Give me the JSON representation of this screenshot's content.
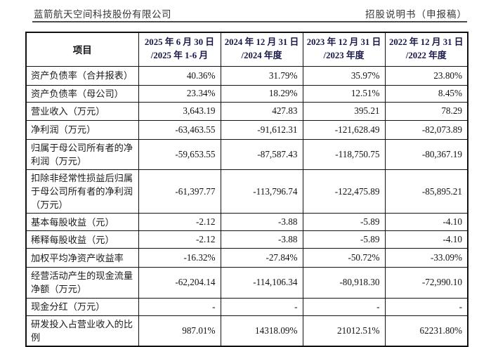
{
  "page_header": {
    "company": "蓝箭航天空间科技股份有限公司",
    "doc_title": "招股说明书（申报稿）"
  },
  "table": {
    "item_header": "项目",
    "columns": [
      {
        "line1": "2025 年 6 月 30 日",
        "line2": "/2025 年 1-6 月"
      },
      {
        "line1": "2024 年 12 月 31 日",
        "line2": "/2024 年度"
      },
      {
        "line1": "2023 年 12 月 31 日",
        "line2": "/2023 年度"
      },
      {
        "line1": "2022 年 12 月 31 日",
        "line2": "/2022 年度"
      }
    ],
    "rows": [
      {
        "label": "资产负债率（合并报表）",
        "values": [
          "40.36%",
          "31.79%",
          "35.97%",
          "23.80%"
        ]
      },
      {
        "label": "资产负债率（母公司）",
        "values": [
          "23.34%",
          "18.29%",
          "12.51%",
          "8.45%"
        ]
      },
      {
        "label": "营业收入（万元）",
        "values": [
          "3,643.19",
          "427.83",
          "395.21",
          "78.29"
        ]
      },
      {
        "label": "净利润（万元）",
        "values": [
          "-63,463.55",
          "-91,612.31",
          "-121,628.49",
          "-82,073.89"
        ]
      },
      {
        "label": "归属于母公司所有者的净利润（万元）",
        "values": [
          "-59,653.55",
          "-87,587.43",
          "-118,750.75",
          "-80,367.19"
        ]
      },
      {
        "label": "扣除非经常性损益后归属于母公司所有者的净利润（万元）",
        "values": [
          "-61,397.77",
          "-113,796.74",
          "-122,475.89",
          "-85,895.21"
        ]
      },
      {
        "label": "基本每股收益（元）",
        "values": [
          "-2.12",
          "-3.88",
          "-5.89",
          "-4.10"
        ]
      },
      {
        "label": "稀释每股收益（元）",
        "values": [
          "-2.12",
          "-3.88",
          "-5.89",
          "-4.10"
        ]
      },
      {
        "label": "加权平均净资产收益率",
        "values": [
          "-16.32%",
          "-27.84%",
          "-50.72%",
          "-33.09%"
        ]
      },
      {
        "label": "经营活动产生的现金流量净额（万元）",
        "values": [
          "-62,204.14",
          "-114,106.34",
          "-80,918.30",
          "-72,990.10"
        ]
      },
      {
        "label": "现金分红（万元）",
        "values": [
          "-",
          "-",
          "-",
          "-"
        ]
      },
      {
        "label": "研发投入占营业收入的比例",
        "values": [
          "987.01%",
          "14318.09%",
          "21012.51%",
          "62231.80%"
        ]
      }
    ],
    "colors": {
      "header_text": "#181848",
      "body_text": "#1a1a1a",
      "border": "#111111",
      "background": "#ffffff"
    }
  }
}
